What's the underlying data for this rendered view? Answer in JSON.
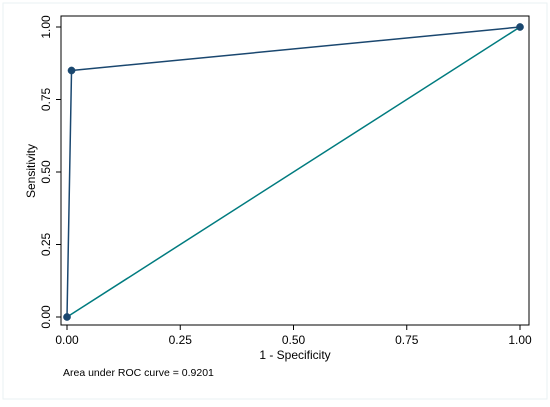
{
  "chart_data": {
    "type": "line",
    "xlabel": "1 - Specificity",
    "ylabel": "Sensitivity",
    "xlim": [
      0,
      1
    ],
    "ylim": [
      0,
      1
    ],
    "x_ticks": [
      "0.00",
      "0.25",
      "0.50",
      "0.75",
      "1.00"
    ],
    "y_ticks": [
      "0.00",
      "0.25",
      "0.50",
      "0.75",
      "1.00"
    ],
    "grid": false,
    "series": [
      {
        "role": "roc_curve",
        "color": "#1a476f",
        "markers": true,
        "points": [
          {
            "x": 0.0,
            "y": 0.0
          },
          {
            "x": 0.01,
            "y": 0.85
          },
          {
            "x": 1.0,
            "y": 1.0
          }
        ]
      },
      {
        "role": "reference_line",
        "color": "#007b7f",
        "markers": false,
        "points": [
          {
            "x": 0.0,
            "y": 0.0
          },
          {
            "x": 1.0,
            "y": 1.0
          }
        ]
      }
    ],
    "note": "Area under ROC curve = 0.9201"
  }
}
